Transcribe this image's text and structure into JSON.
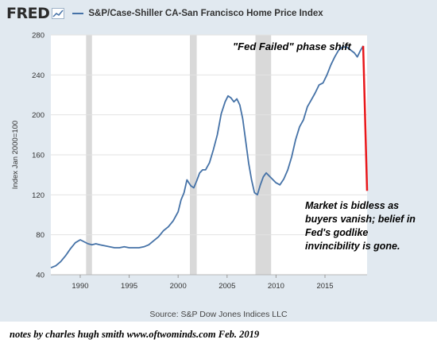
{
  "header": {
    "logo": "FRED",
    "title": "S&P/Case-Shiller CA-San Francisco Home Price Index"
  },
  "source": "Source: S&P Dow Jones Indices LLC",
  "notes": "notes by charles hugh smith   www.oftwominds.com     Feb. 2019",
  "annotations": {
    "top": "\"Fed Failed\" phase shift",
    "bottom": "Market is bidless as buyers vanish; belief in Fed's godlike invincibility is gone."
  },
  "colors": {
    "series": "#4572a7",
    "recession": "#d9d9d9",
    "projection": "#e8171b",
    "background": "#e1e9f0"
  },
  "chart_data": {
    "type": "line",
    "title": "S&P/Case-Shiller CA-San Francisco Home Price Index",
    "ylabel": "Index Jan 2000=100",
    "xlabel": "",
    "xlim": [
      1987.0,
      2019.3
    ],
    "ylim": [
      40,
      280
    ],
    "x_ticks": [
      1990,
      1995,
      2000,
      2005,
      2010,
      2015
    ],
    "y_ticks": [
      40,
      80,
      120,
      160,
      200,
      240,
      280
    ],
    "grid": true,
    "recessions": [
      [
        1990.6,
        1991.2
      ],
      [
        2001.2,
        2001.9
      ],
      [
        2007.9,
        2009.5
      ]
    ],
    "series": [
      {
        "name": "S&P/Case-Shiller CA-San Francisco Home Price Index",
        "x": [
          1987.0,
          1987.5,
          1988.0,
          1988.5,
          1989.0,
          1989.5,
          1990.0,
          1990.4,
          1990.8,
          1991.2,
          1991.6,
          1992.0,
          1992.5,
          1993.0,
          1993.5,
          1994.0,
          1994.5,
          1995.0,
          1995.5,
          1996.0,
          1996.5,
          1997.0,
          1997.5,
          1998.0,
          1998.5,
          1999.0,
          1999.5,
          2000.0,
          2000.3,
          2000.6,
          2000.9,
          2001.1,
          2001.3,
          2001.6,
          2001.9,
          2002.2,
          2002.5,
          2002.8,
          2003.2,
          2003.6,
          2004.0,
          2004.4,
          2004.8,
          2005.1,
          2005.4,
          2005.7,
          2006.0,
          2006.3,
          2006.6,
          2006.9,
          2007.2,
          2007.5,
          2007.8,
          2008.1,
          2008.4,
          2008.7,
          2009.0,
          2009.2,
          2009.4,
          2009.7,
          2010.0,
          2010.4,
          2010.8,
          2011.2,
          2011.6,
          2012.0,
          2012.4,
          2012.8,
          2013.2,
          2013.6,
          2014.0,
          2014.4,
          2014.8,
          2015.2,
          2015.6,
          2016.0,
          2016.4,
          2016.8,
          2017.2,
          2017.6,
          2018.0,
          2018.3,
          2018.6,
          2018.9
        ],
        "y": [
          47,
          49,
          53,
          59,
          66,
          72,
          75,
          73,
          71,
          70,
          71,
          70,
          69,
          68,
          67,
          67,
          68,
          67,
          67,
          67,
          68,
          70,
          74,
          78,
          84,
          88,
          94,
          103,
          115,
          122,
          135,
          132,
          129,
          127,
          134,
          142,
          145,
          145,
          152,
          165,
          180,
          201,
          213,
          219,
          217,
          213,
          216,
          210,
          196,
          174,
          152,
          135,
          122,
          120,
          130,
          138,
          142,
          140,
          138,
          135,
          132,
          130,
          136,
          145,
          158,
          175,
          188,
          195,
          208,
          215,
          222,
          230,
          232,
          240,
          250,
          258,
          265,
          268,
          268,
          265,
          262,
          258,
          264,
          269
        ]
      }
    ],
    "projection": {
      "x": [
        2018.9,
        2019.3
      ],
      "y": [
        269,
        124
      ]
    }
  }
}
